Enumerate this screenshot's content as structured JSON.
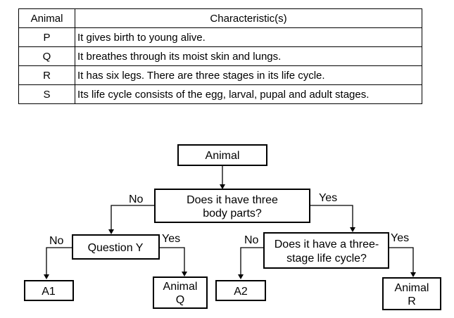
{
  "table": {
    "headers": {
      "animal": "Animal",
      "characteristics": "Characteristic(s)"
    },
    "rows": [
      {
        "animal": "P",
        "characteristic": "It gives birth to young alive."
      },
      {
        "animal": "Q",
        "characteristic": "It breathes through its moist skin and lungs."
      },
      {
        "animal": "R",
        "characteristic": "It has six legs. There are three stages in its life cycle."
      },
      {
        "animal": "S",
        "characteristic": "Its life cycle consists of the egg, larval, pupal and adult stages."
      }
    ]
  },
  "tree": {
    "root": "Animal",
    "question1": {
      "line1": "Does it have three",
      "line2": "body parts?"
    },
    "question_y": "Question Y",
    "question2": {
      "line1": "Does it have a three-",
      "line2": "stage life cycle?"
    },
    "branch_no": "No",
    "branch_yes": "Yes",
    "leaves": {
      "a1": "A1",
      "animal_q": {
        "line1": "Animal",
        "line2": "Q"
      },
      "a2": "A2",
      "animal_r": {
        "line1": "Animal",
        "line2": "R"
      }
    }
  }
}
